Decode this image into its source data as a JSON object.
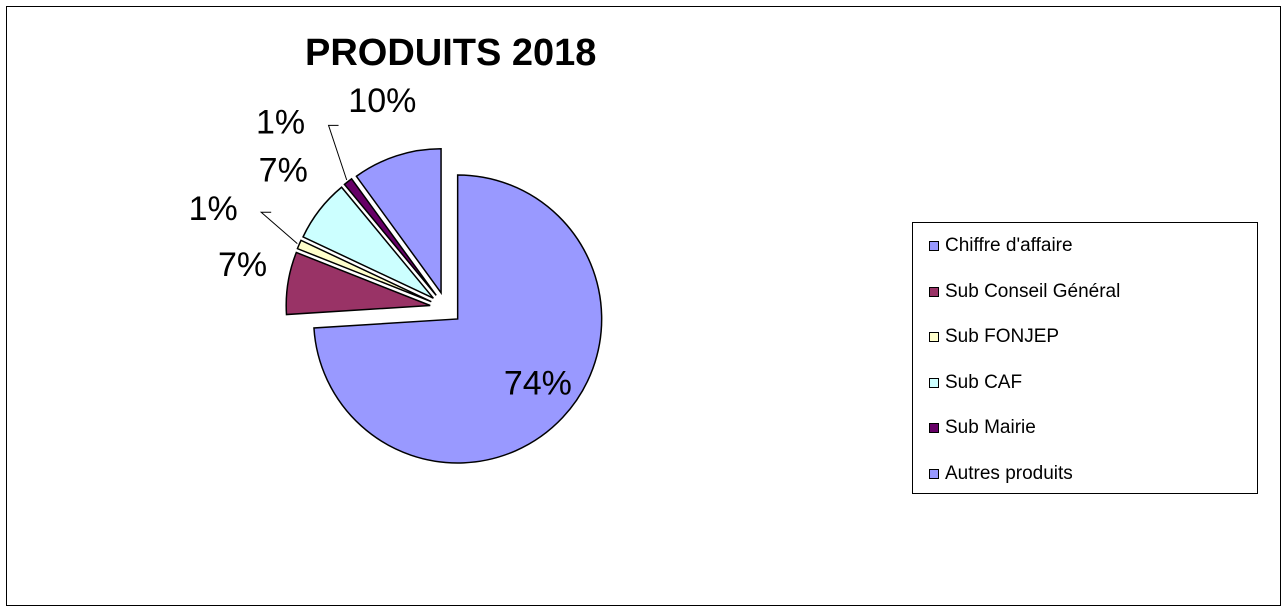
{
  "chart_data": {
    "type": "pie",
    "title": "PRODUITS 2018",
    "categories": [
      "Chiffre d'affaire",
      "Sub Conseil Général",
      "Sub FONJEP",
      "Sub CAF",
      "Sub Mairie",
      "Autres produits"
    ],
    "values": [
      74,
      7,
      1,
      7,
      1,
      10
    ],
    "data_labels": [
      "74%",
      "7%",
      "1%",
      "7%",
      "1%",
      "10%"
    ],
    "colors": [
      "#9999ff",
      "#993366",
      "#ffffcc",
      "#ccffff",
      "#660066",
      "#9999ff"
    ],
    "exploded": true,
    "legend_position": "right"
  }
}
